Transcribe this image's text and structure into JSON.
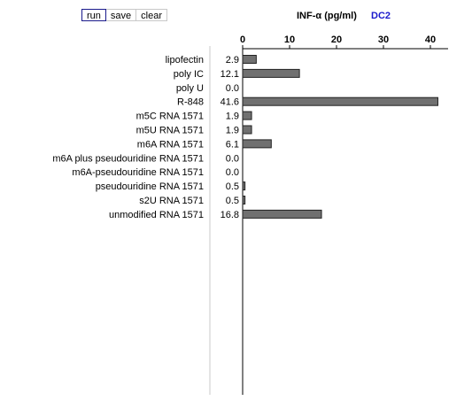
{
  "toolbar": {
    "run_label": "run",
    "save_label": "save",
    "clear_label": "clear"
  },
  "header": {
    "measure_label": "INF-α (pg/ml)",
    "cell_label": "DC2"
  },
  "colors": {
    "bar_fill": "#707070",
    "bar_stroke": "#222222",
    "cell_label": "#1a1acc",
    "axis": "#000000",
    "divider": "#c8c8c8"
  },
  "chart_data": {
    "type": "bar",
    "orientation": "horizontal",
    "categories": [
      "lipofectin",
      "poly IC",
      "poly U",
      "R-848",
      "m5C RNA 1571",
      "m5U  RNA 1571",
      "m6A  RNA 1571",
      "m6A plus pseudouridine RNA 1571",
      "m6A-pseudouridine RNA 1571",
      "pseudouridine RNA 1571",
      "s2U RNA 1571",
      "unmodified RNA 1571"
    ],
    "values": [
      2.9,
      12.1,
      0.0,
      41.6,
      1.9,
      1.9,
      6.1,
      0.0,
      0.0,
      0.5,
      0.5,
      16.8
    ],
    "value_labels": [
      "2.9",
      "12.1",
      "0.0",
      "41.6",
      "1.9",
      "1.9",
      "6.1",
      "0.0",
      "0.0",
      "0.5",
      "0.5",
      "16.8"
    ],
    "ticks": [
      0,
      10,
      20,
      30,
      40
    ],
    "tick_labels": [
      "0",
      "10",
      "20",
      "30",
      "40"
    ],
    "xlim": [
      0,
      43
    ],
    "title": "INF-α (pg/ml)",
    "xlabel": "INF-α (pg/ml)",
    "ylabel": ""
  }
}
